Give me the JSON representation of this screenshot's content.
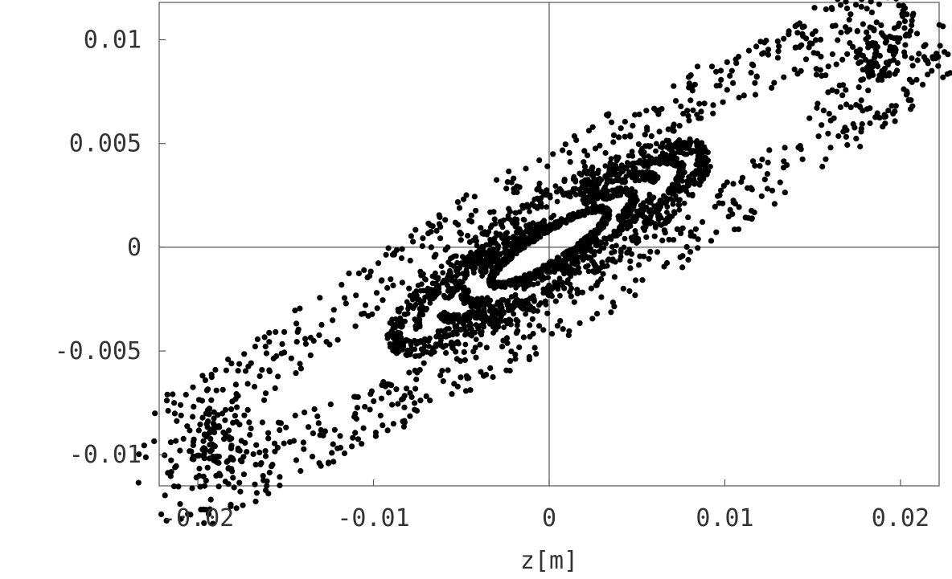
{
  "chart_data": {
    "type": "scatter",
    "title": "",
    "xlabel": "z[m]",
    "ylabel": "",
    "xlim": [
      -0.0222,
      0.0222
    ],
    "ylim": [
      -0.0115,
      0.0118
    ],
    "x_ticks": [
      -0.02,
      -0.01,
      0,
      0.01,
      0.02
    ],
    "x_tick_labels": [
      "-0.02",
      "-0.01",
      "0",
      "0.01",
      "0.02"
    ],
    "y_ticks": [
      -0.01,
      -0.005,
      0,
      0.005,
      0.01
    ],
    "y_tick_labels": [
      "-0.01",
      "-0.005",
      "0",
      "0.005",
      "0.01"
    ],
    "zero_lines": true,
    "grid": false,
    "legend": "none",
    "marker_color": "#000000",
    "series": [
      {
        "description_free": true,
        "rings": [
          {
            "center": [
              0,
              0
            ],
            "endpoints": [
              [
                0.0205,
                0.0103
              ],
              [
                -0.0205,
                -0.0103
              ]
            ],
            "half_width": 0.0032,
            "thickness": 0.0012,
            "density": 1.0
          },
          {
            "center": [
              0,
              0
            ],
            "endpoints": [
              [
                0.0088,
                0.0045
              ],
              [
                -0.0088,
                -0.0045
              ]
            ],
            "half_width": 0.0021,
            "thickness": 0.0004,
            "density": 1.0
          },
          {
            "center": [
              0,
              0
            ],
            "endpoints": [
              [
                0.0075,
                0.0039
              ],
              [
                -0.0075,
                -0.0039
              ]
            ],
            "half_width": 0.00175,
            "thickness": 0.0002,
            "density": 0.7
          },
          {
            "center": [
              0,
              0
            ],
            "endpoints": [
              [
                0.0061,
                0.0032
              ],
              [
                -0.0061,
                -0.0032
              ]
            ],
            "half_width": 0.0014,
            "thickness": 0.0002,
            "density": 0.75
          },
          {
            "center": [
              0,
              0
            ],
            "endpoints": [
              [
                0.0048,
                0.0025
              ],
              [
                -0.0048,
                -0.0025
              ]
            ],
            "half_width": 0.0011,
            "thickness": 0.0002,
            "density": 0.7
          },
          {
            "center": [
              0,
              0
            ],
            "endpoints": [
              [
                0.0033,
                0.0017
              ],
              [
                -0.0033,
                -0.0017
              ]
            ],
            "half_width": 0.0008,
            "thickness": 0.00015,
            "density": 1.0
          }
        ]
      }
    ]
  }
}
